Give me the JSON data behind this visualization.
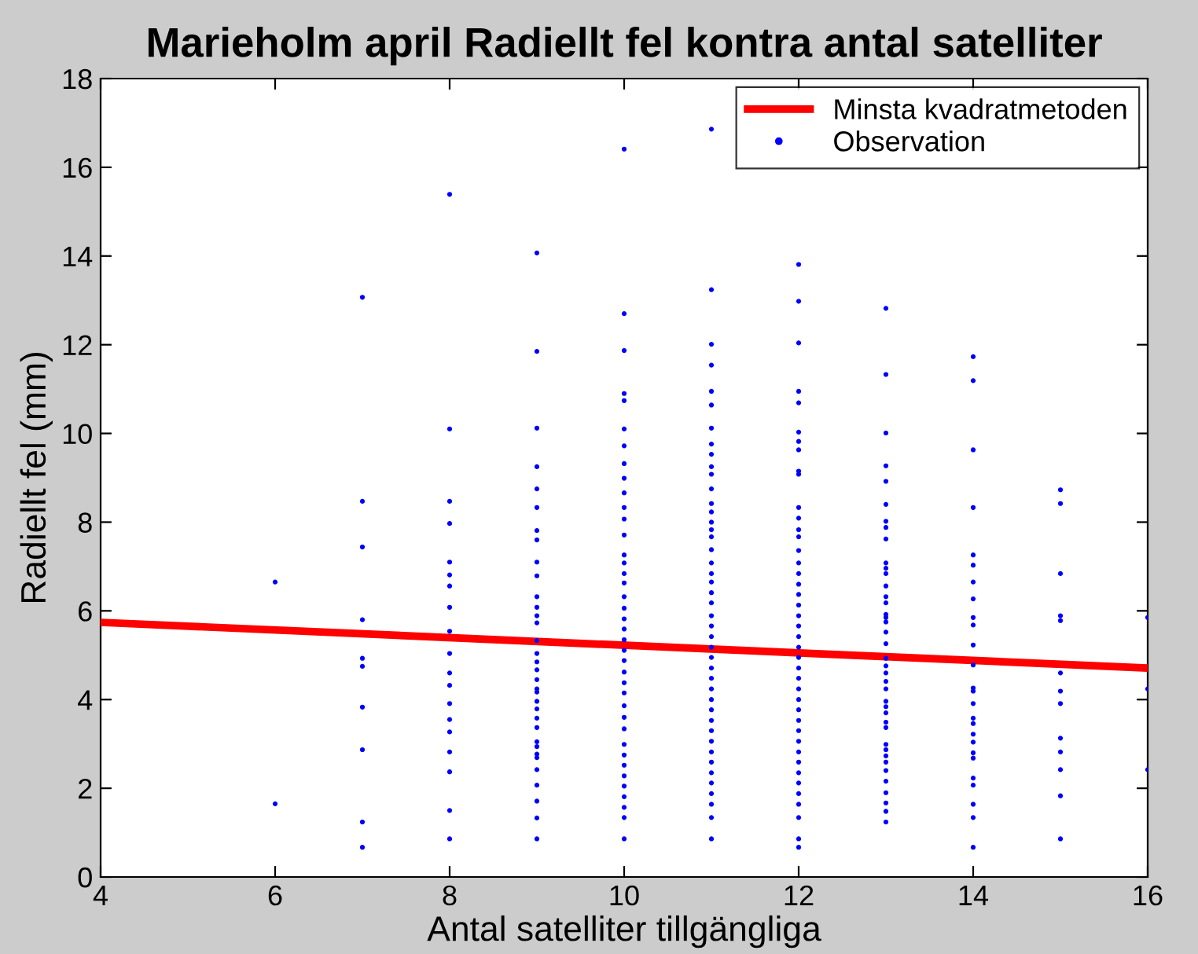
{
  "chart_data": {
    "type": "scatter",
    "title": "Marieholm april Radiellt fel kontra antal satelliter",
    "xlabel": "Antal satelliter tillgängliga",
    "ylabel": "Radiellt fel (mm)",
    "xlim": [
      4,
      16
    ],
    "ylim": [
      0,
      18
    ],
    "xticks": [
      4,
      6,
      8,
      10,
      12,
      14,
      16
    ],
    "yticks": [
      0,
      2,
      4,
      6,
      8,
      10,
      12,
      14,
      16,
      18
    ],
    "grid": false,
    "legend": "top right",
    "series": [
      {
        "name": "Minsta kvadratmetoden",
        "type": "line",
        "color": "#ff0000",
        "marker": "none",
        "line_style": "solid",
        "x": [
          4,
          16
        ],
        "values": [
          5.74,
          4.71
        ]
      },
      {
        "name": "Observation",
        "color": "#0000ff",
        "marker": "circle",
        "x": [
          6,
          6,
          7,
          7,
          7,
          7,
          7,
          7,
          7,
          7,
          7,
          7,
          8,
          8,
          8,
          8,
          8,
          8,
          8,
          8,
          8,
          8,
          8,
          8,
          8,
          8,
          8,
          8,
          8,
          8,
          8,
          9,
          9,
          9,
          9,
          9,
          9,
          9,
          9,
          9,
          9,
          9,
          9,
          9,
          9,
          9,
          9,
          9,
          9,
          9,
          9,
          9,
          9,
          9,
          9,
          9,
          9,
          9,
          9,
          9,
          9,
          9,
          9,
          9,
          9,
          10,
          10,
          10,
          10,
          10,
          10,
          10,
          10,
          10,
          10,
          10,
          10,
          10,
          10,
          10,
          10,
          10,
          10,
          10,
          10,
          10,
          10,
          10,
          10,
          10,
          10,
          10,
          10,
          10,
          10,
          10,
          10,
          10,
          10,
          10,
          10,
          10,
          10,
          10,
          11,
          11,
          11,
          11,
          11,
          11,
          11,
          11,
          11,
          11,
          11,
          11,
          11,
          11,
          11,
          11,
          11,
          11,
          11,
          11,
          11,
          11,
          11,
          11,
          11,
          11,
          11,
          11,
          11,
          11,
          11,
          11,
          11,
          11,
          11,
          11,
          11,
          11,
          11,
          11,
          11,
          11,
          11,
          11,
          12,
          12,
          12,
          12,
          12,
          12,
          12,
          12,
          12,
          12,
          12,
          12,
          12,
          12,
          12,
          12,
          12,
          12,
          12,
          12,
          12,
          12,
          12,
          12,
          12,
          12,
          12,
          12,
          12,
          12,
          12,
          12,
          12,
          12,
          12,
          12,
          12,
          12,
          12,
          12,
          12,
          12,
          13,
          13,
          13,
          13,
          13,
          13,
          13,
          13,
          13,
          13,
          13,
          13,
          13,
          13,
          13,
          13,
          13,
          13,
          13,
          13,
          13,
          13,
          13,
          13,
          13,
          13,
          13,
          13,
          13,
          13,
          13,
          13,
          13,
          13,
          13,
          13,
          13,
          13,
          13,
          13,
          14,
          14,
          14,
          14,
          14,
          14,
          14,
          14,
          14,
          14,
          14,
          14,
          14,
          14,
          14,
          14,
          14,
          14,
          14,
          14,
          14,
          14,
          14,
          14,
          14,
          14,
          15,
          15,
          15,
          15,
          15,
          15,
          15,
          15,
          15,
          15,
          15,
          15,
          15,
          16,
          16,
          16
        ],
        "values": [
          6.65,
          1.65,
          13.07,
          8.47,
          7.44,
          5.8,
          4.93,
          4.75,
          3.83,
          2.87,
          1.24,
          0.67,
          15.39,
          10.1,
          8.47,
          7.97,
          7.1,
          6.81,
          6.56,
          6.08,
          5.54,
          5.04,
          4.6,
          4.32,
          3.91,
          3.55,
          3.27,
          2.82,
          2.37,
          1.5,
          0.86,
          14.07,
          11.85,
          10.12,
          9.25,
          8.75,
          8.33,
          7.81,
          7.6,
          7.1,
          6.79,
          6.32,
          6.08,
          5.89,
          5.73,
          5.33,
          5.04,
          4.85,
          4.67,
          4.45,
          4.24,
          4.17,
          3.96,
          3.79,
          3.58,
          3.37,
          3.05,
          2.94,
          2.77,
          2.69,
          2.42,
          2.07,
          1.71,
          1.33,
          0.86,
          16.41,
          12.7,
          11.87,
          10.9,
          10.74,
          10.1,
          9.72,
          9.32,
          8.99,
          8.66,
          8.33,
          8.07,
          7.71,
          7.26,
          7.08,
          6.84,
          6.63,
          6.32,
          6.06,
          5.82,
          5.59,
          5.35,
          5.11,
          4.88,
          4.62,
          4.38,
          4.15,
          3.86,
          3.6,
          3.34,
          2.99,
          2.75,
          2.52,
          2.28,
          2.05,
          1.81,
          1.57,
          1.34,
          0.86,
          16.86,
          13.24,
          12.01,
          11.54,
          10.95,
          10.64,
          10.12,
          9.76,
          9.53,
          9.25,
          9.08,
          8.75,
          8.42,
          8.23,
          8.0,
          7.83,
          7.67,
          7.38,
          7.08,
          6.84,
          6.65,
          6.41,
          6.18,
          5.89,
          5.66,
          5.42,
          5.18,
          4.95,
          4.71,
          4.48,
          4.24,
          4.0,
          3.77,
          3.53,
          3.3,
          3.06,
          2.82,
          2.59,
          2.35,
          2.12,
          1.88,
          1.64,
          1.34,
          0.86,
          13.81,
          12.98,
          12.04,
          10.95,
          10.69,
          10.03,
          9.82,
          9.63,
          9.15,
          9.08,
          8.33,
          8.09,
          7.83,
          7.67,
          7.36,
          7.08,
          6.84,
          6.6,
          6.37,
          6.13,
          5.89,
          5.66,
          5.42,
          5.18,
          4.95,
          4.71,
          4.48,
          4.24,
          4.0,
          3.77,
          3.53,
          3.3,
          3.06,
          2.82,
          2.59,
          2.35,
          2.12,
          1.88,
          1.64,
          1.34,
          0.86,
          0.67,
          12.82,
          11.33,
          10.01,
          9.27,
          8.92,
          8.4,
          8.02,
          7.88,
          7.62,
          7.08,
          6.96,
          6.84,
          6.56,
          6.32,
          6.18,
          5.92,
          5.85,
          5.75,
          5.52,
          5.26,
          4.93,
          4.76,
          4.6,
          4.41,
          4.24,
          3.96,
          3.84,
          3.7,
          3.49,
          3.37,
          2.99,
          2.87,
          2.73,
          2.59,
          2.4,
          2.16,
          1.9,
          1.67,
          1.48,
          1.24,
          11.73,
          11.19,
          9.63,
          8.33,
          7.26,
          7.03,
          6.65,
          6.27,
          5.85,
          5.68,
          5.23,
          4.78,
          4.26,
          4.19,
          3.91,
          3.58,
          3.46,
          3.22,
          3.04,
          2.8,
          2.68,
          2.23,
          2.07,
          1.64,
          1.34,
          0.67,
          8.73,
          8.42,
          6.84,
          5.89,
          5.78,
          4.6,
          4.19,
          3.91,
          3.13,
          2.82,
          2.42,
          1.83,
          0.86,
          5.85,
          4.24,
          2.42
        ]
      }
    ]
  }
}
